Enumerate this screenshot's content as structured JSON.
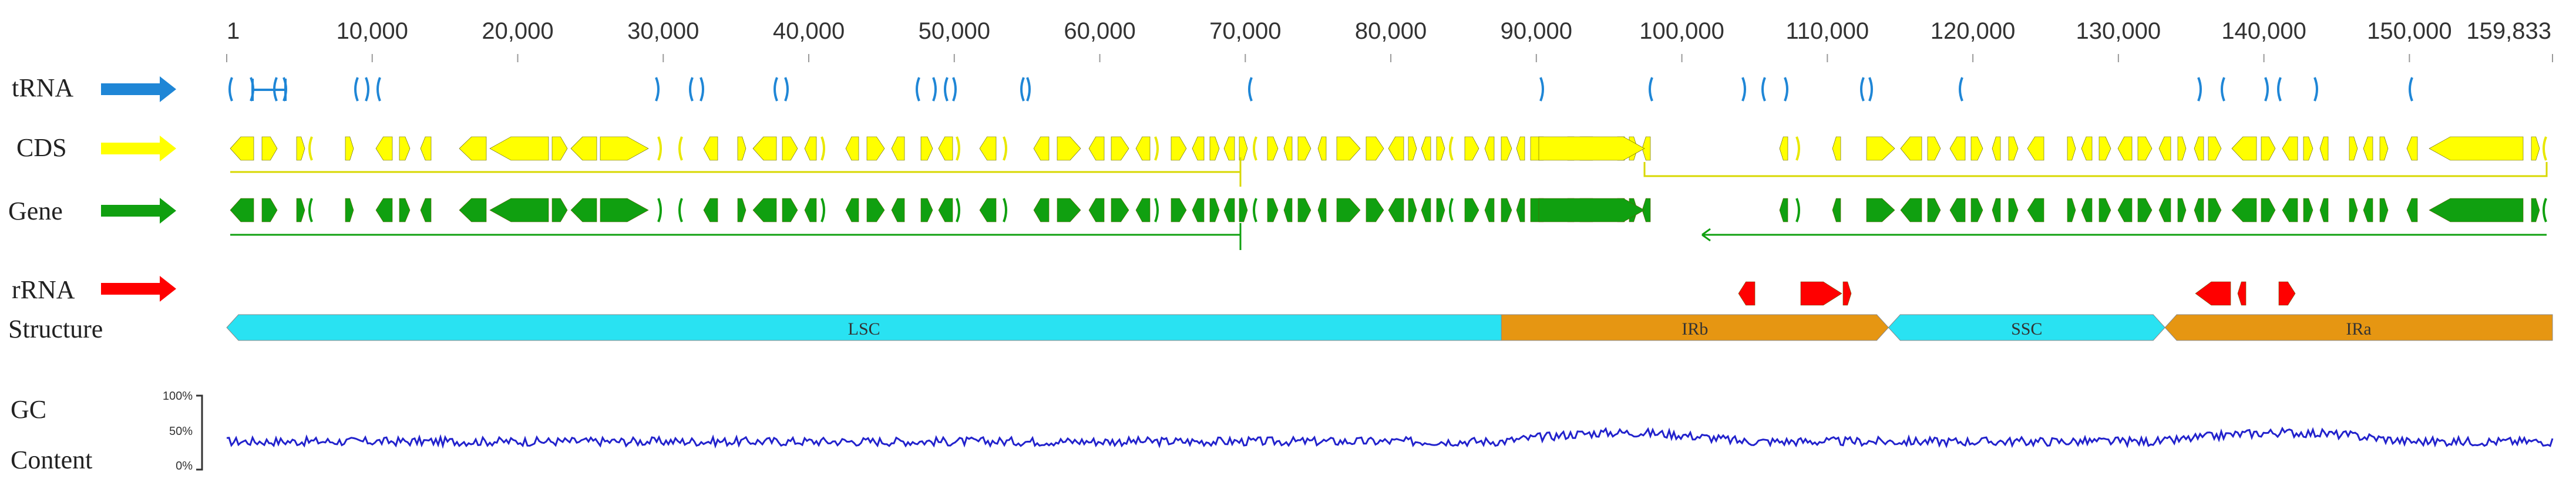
{
  "axis": {
    "ticks": [
      "1",
      "10,000",
      "20,000",
      "30,000",
      "40,000",
      "50,000",
      "60,000",
      "70,000",
      "80,000",
      "90,000",
      "100,000",
      "110,000",
      "120,000",
      "130,000",
      "140,000",
      "150,000",
      "159,833"
    ],
    "tick_values": [
      1,
      10000,
      20000,
      30000,
      40000,
      50000,
      60000,
      70000,
      80000,
      90000,
      100000,
      110000,
      120000,
      130000,
      140000,
      150000,
      159833
    ],
    "min": 1,
    "max": 159833
  },
  "tracks": [
    {
      "key": "trna",
      "label": "tRNA",
      "color": "#1f86d6"
    },
    {
      "key": "cds",
      "label": "CDS",
      "color": "#ffff00"
    },
    {
      "key": "gene",
      "label": "Gene",
      "color": "#10a010"
    },
    {
      "key": "rrna",
      "label": "rRNA",
      "color": "#ff0000"
    }
  ],
  "structure": {
    "label": "Structure",
    "regions": [
      {
        "name": "LSC",
        "start": 1,
        "end": 87600,
        "color": "#29e2f2"
      },
      {
        "name": "IRb",
        "start": 87600,
        "end": 114200,
        "color": "#e69612"
      },
      {
        "name": "SSC",
        "start": 114200,
        "end": 133200,
        "color": "#29e2f2"
      },
      {
        "name": "IRa",
        "start": 133200,
        "end": 159833,
        "color": "#e69612"
      }
    ]
  },
  "gc": {
    "label_line1": "GC",
    "label_line2": "Content",
    "scale_labels": [
      "100%",
      "50%",
      "0%"
    ],
    "color": "#2222cc"
  }
}
